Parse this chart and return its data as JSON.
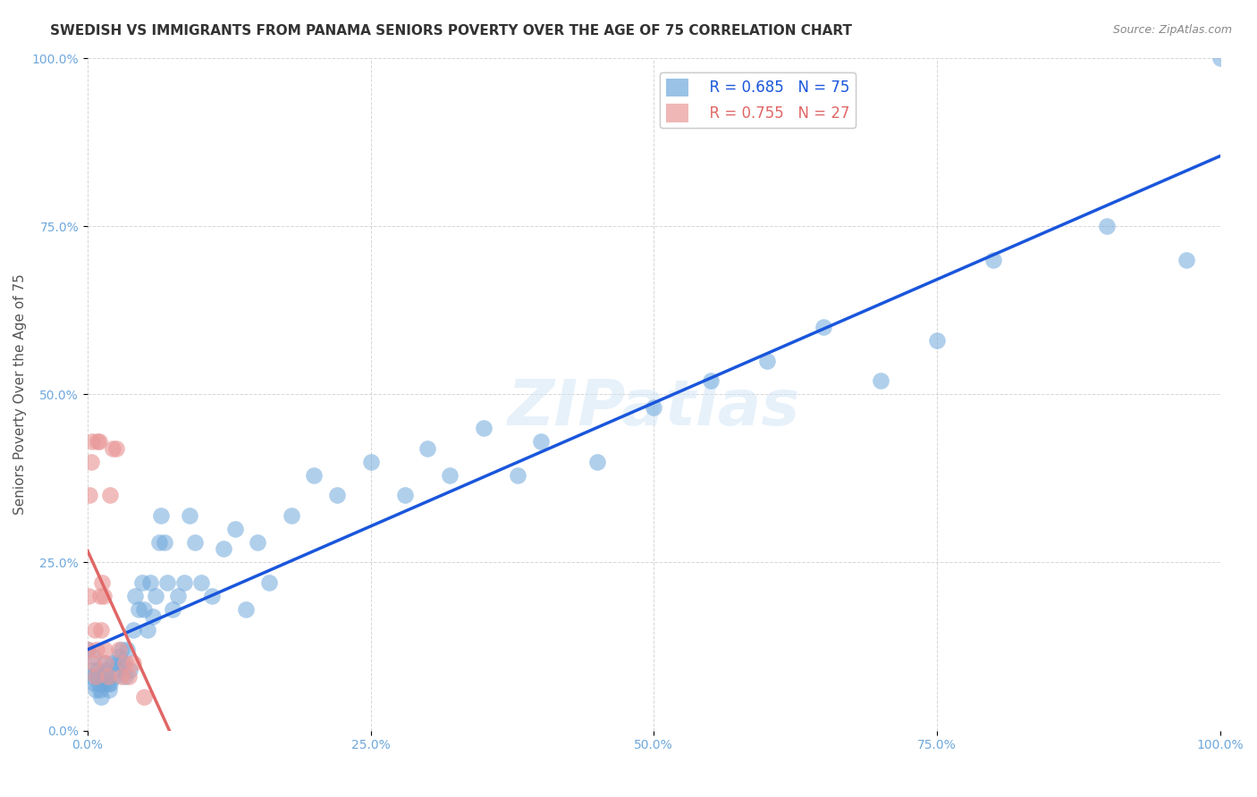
{
  "title": "SWEDISH VS IMMIGRANTS FROM PANAMA SENIORS POVERTY OVER THE AGE OF 75 CORRELATION CHART",
  "source": "Source: ZipAtlas.com",
  "ylabel": "Seniors Poverty Over the Age of 75",
  "xlabel": "",
  "watermark": "ZIPatlas",
  "swedes_R": 0.685,
  "swedes_N": 75,
  "panama_R": 0.755,
  "panama_N": 27,
  "swedes_color": "#6fa8dc",
  "panama_color": "#ea9999",
  "swedes_line_color": "#1a56db",
  "panama_line_color": "#e06666",
  "background_color": "#ffffff",
  "grid_color": "#cccccc",
  "xlim": [
    0,
    1
  ],
  "ylim": [
    0,
    1
  ],
  "xtick_labels": [
    "0.0%",
    "25.0%",
    "50.0%",
    "75.0%",
    "100.0%"
  ],
  "xtick_vals": [
    0,
    0.25,
    0.5,
    0.75,
    1.0
  ],
  "ytick_labels": [
    "0.0%",
    "25.0%",
    "50.0%",
    "75.0%",
    "100.0%"
  ],
  "ytick_vals": [
    0,
    0.25,
    0.5,
    0.75,
    1.0
  ],
  "swedes_x": [
    0.0,
    0.003,
    0.004,
    0.005,
    0.006,
    0.007,
    0.008,
    0.009,
    0.01,
    0.011,
    0.012,
    0.013,
    0.014,
    0.015,
    0.016,
    0.017,
    0.018,
    0.019,
    0.02,
    0.022,
    0.024,
    0.025,
    0.027,
    0.028,
    0.03,
    0.031,
    0.033,
    0.035,
    0.037,
    0.04,
    0.042,
    0.045,
    0.048,
    0.05,
    0.053,
    0.055,
    0.058,
    0.06,
    0.063,
    0.065,
    0.068,
    0.07,
    0.075,
    0.08,
    0.085,
    0.09,
    0.095,
    0.1,
    0.11,
    0.12,
    0.13,
    0.14,
    0.15,
    0.16,
    0.18,
    0.2,
    0.22,
    0.25,
    0.28,
    0.3,
    0.32,
    0.35,
    0.38,
    0.4,
    0.45,
    0.5,
    0.55,
    0.6,
    0.65,
    0.7,
    0.75,
    0.8,
    0.9,
    0.97,
    1.0
  ],
  "swedes_y": [
    0.12,
    0.08,
    0.09,
    0.11,
    0.07,
    0.06,
    0.08,
    0.09,
    0.07,
    0.06,
    0.05,
    0.08,
    0.07,
    0.1,
    0.09,
    0.08,
    0.07,
    0.06,
    0.07,
    0.1,
    0.08,
    0.09,
    0.1,
    0.11,
    0.12,
    0.1,
    0.08,
    0.12,
    0.09,
    0.15,
    0.2,
    0.18,
    0.22,
    0.18,
    0.15,
    0.22,
    0.17,
    0.2,
    0.28,
    0.32,
    0.28,
    0.22,
    0.18,
    0.2,
    0.22,
    0.32,
    0.28,
    0.22,
    0.2,
    0.27,
    0.3,
    0.18,
    0.28,
    0.22,
    0.32,
    0.38,
    0.35,
    0.4,
    0.35,
    0.42,
    0.38,
    0.45,
    0.38,
    0.43,
    0.4,
    0.48,
    0.52,
    0.55,
    0.6,
    0.52,
    0.58,
    0.7,
    0.75,
    0.7,
    1.0
  ],
  "panama_x": [
    0.0,
    0.001,
    0.002,
    0.003,
    0.004,
    0.005,
    0.006,
    0.007,
    0.008,
    0.009,
    0.01,
    0.011,
    0.012,
    0.013,
    0.014,
    0.015,
    0.016,
    0.018,
    0.02,
    0.022,
    0.025,
    0.028,
    0.03,
    0.033,
    0.036,
    0.04,
    0.05
  ],
  "panama_y": [
    0.12,
    0.2,
    0.35,
    0.4,
    0.43,
    0.1,
    0.15,
    0.08,
    0.12,
    0.43,
    0.43,
    0.2,
    0.15,
    0.22,
    0.2,
    0.12,
    0.1,
    0.08,
    0.35,
    0.42,
    0.42,
    0.12,
    0.08,
    0.1,
    0.08,
    0.1,
    0.05
  ],
  "title_fontsize": 11,
  "axis_fontsize": 11,
  "tick_fontsize": 10,
  "legend_fontsize": 12
}
